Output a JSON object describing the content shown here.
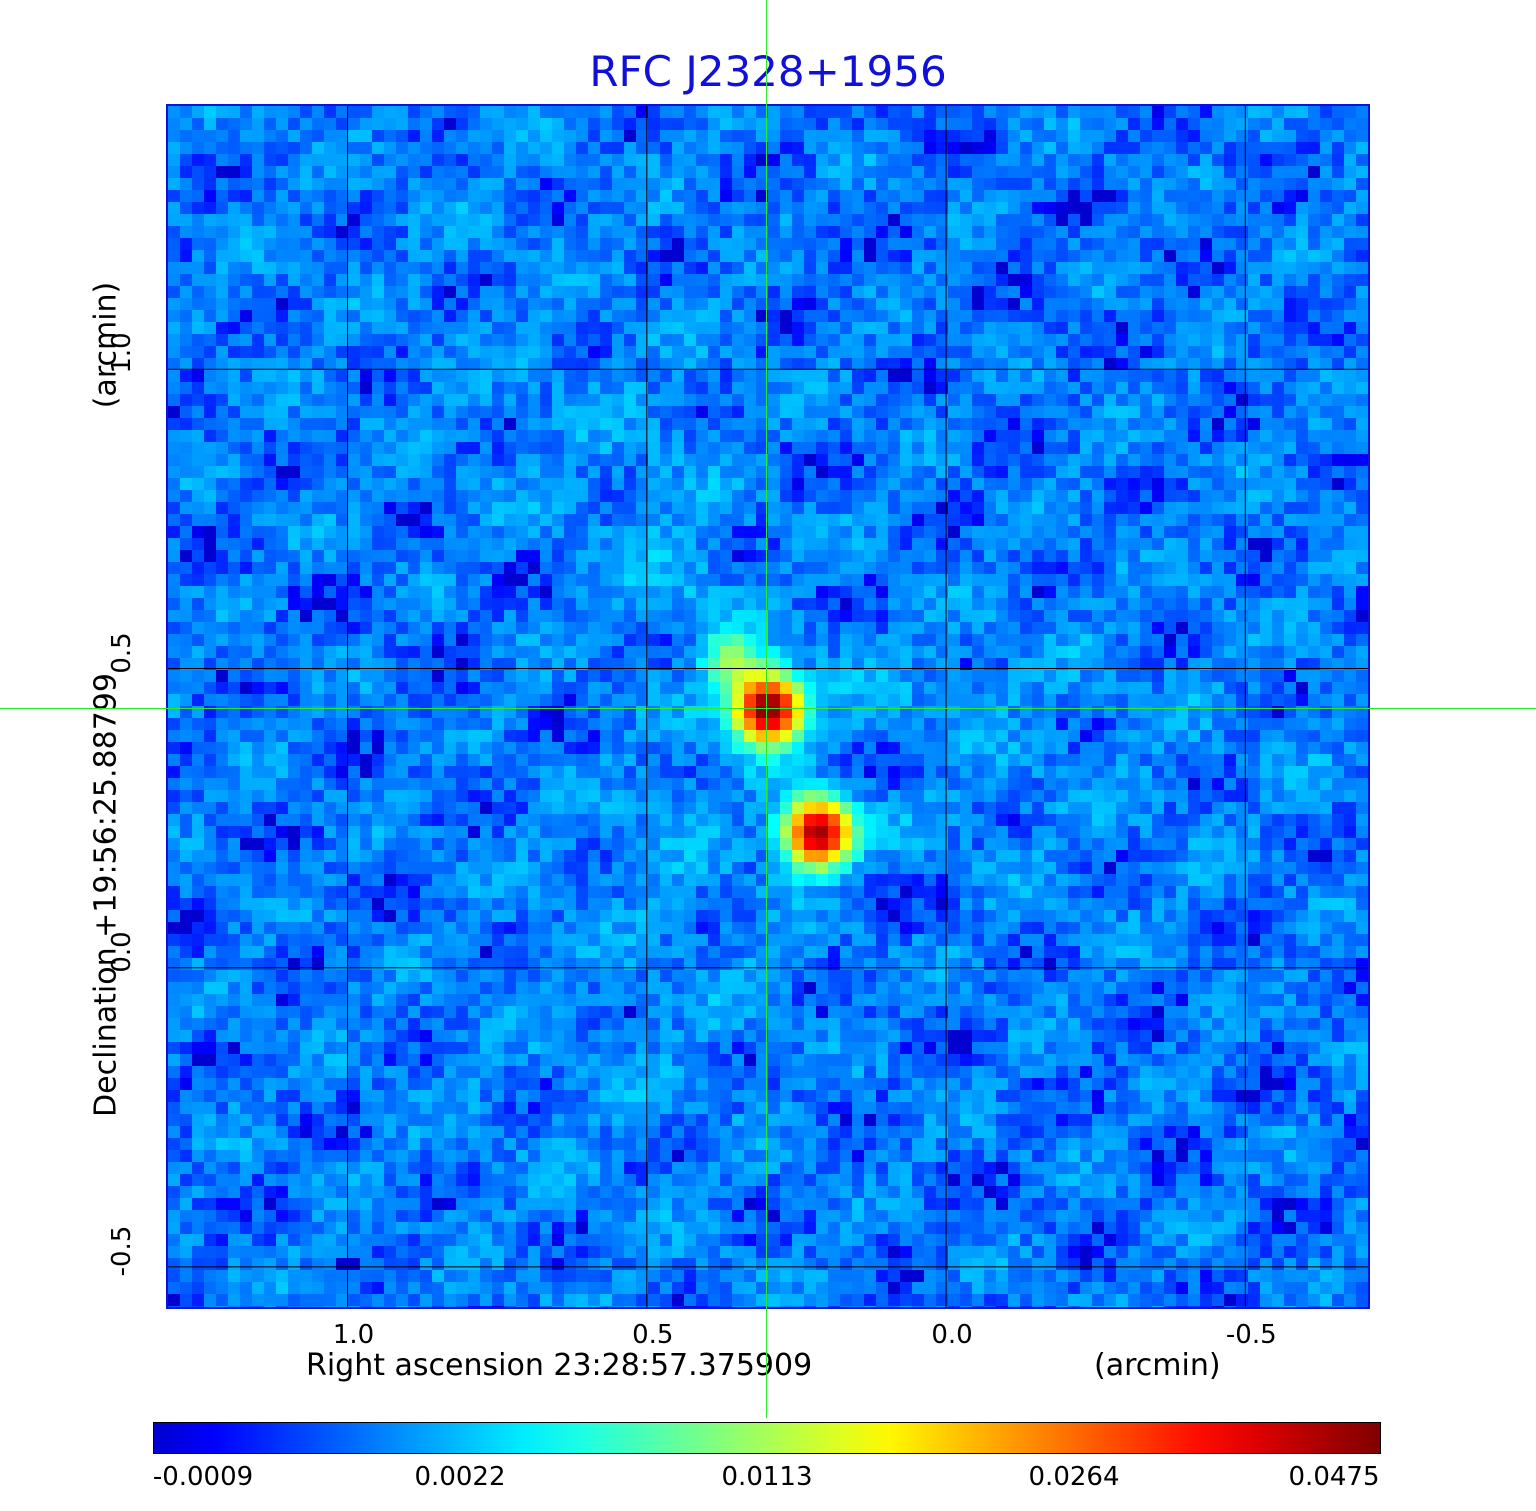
{
  "chart_data": {
    "type": "heatmap",
    "title": "RFC J2328+1956",
    "xlabel": "Right ascension  23:28:57.375909",
    "xunit": "(arcmin)",
    "ylabel": "Declination  +19:56:25.88799",
    "yunit": "(arcmin)",
    "x_ticks": [
      {
        "value": 1.0,
        "label": "1.0"
      },
      {
        "value": 0.5,
        "label": "0.5"
      },
      {
        "value": 0.0,
        "label": "0.0"
      },
      {
        "value": -0.5,
        "label": "-0.5"
      }
    ],
    "y_ticks": [
      {
        "value": 1.0,
        "label": "1.0"
      },
      {
        "value": 0.5,
        "label": "0.5"
      },
      {
        "value": 0.0,
        "label": "0.0"
      },
      {
        "value": -0.5,
        "label": "-0.5"
      }
    ],
    "xlim": [
      1.3,
      -0.705
    ],
    "ylim": [
      -0.567,
      1.44
    ],
    "x_reversed": true,
    "grid": true,
    "crosshair": {
      "x": 0.297,
      "y": 0.433
    },
    "sources": [
      {
        "x": 0.297,
        "y": 0.433,
        "peak": 0.0475
      },
      {
        "x": 0.213,
        "y": 0.225,
        "peak": 0.044
      },
      {
        "x": 0.355,
        "y": 0.51,
        "peak": 0.009
      }
    ],
    "colorbar": {
      "colormap": "jet",
      "ticks": [
        "-0.0009",
        "0.0022",
        "0.0113",
        "0.0264",
        "0.0475"
      ]
    },
    "colors": {
      "title": "#1010d8",
      "frame": "#0a14d8",
      "crosshair": "#2ee82e",
      "grid": "#000000"
    }
  }
}
